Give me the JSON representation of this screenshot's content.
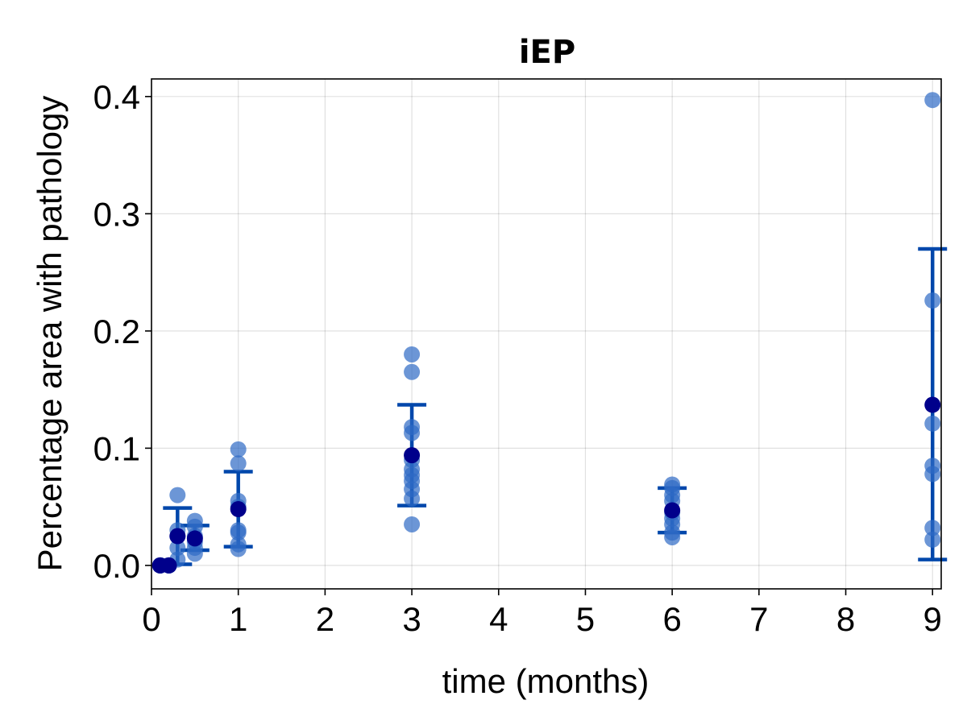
{
  "chart_data": {
    "type": "scatter",
    "title": "iEP",
    "xlabel": "time (months)",
    "ylabel": "Percentage area with pathology",
    "xlim": [
      0,
      9.1
    ],
    "ylim": [
      -0.02,
      0.415
    ],
    "x_ticks": [
      0,
      1,
      2,
      3,
      4,
      5,
      6,
      7,
      8,
      9
    ],
    "x_tick_labels": [
      "0",
      "1",
      "2",
      "3",
      "4",
      "5",
      "6",
      "7",
      "8",
      "9"
    ],
    "y_ticks": [
      0.0,
      0.1,
      0.2,
      0.3,
      0.4
    ],
    "y_tick_labels": [
      "0.0",
      "0.1",
      "0.2",
      "0.3",
      "0.4"
    ],
    "grid": true,
    "colors": {
      "points": "#2e6ac4",
      "mean": "#00008b",
      "errorbar": "#0047ab"
    },
    "groups": [
      {
        "x": 0.1,
        "points": [
          0.0,
          0.0,
          0.0,
          0.0
        ],
        "mean": 0.0,
        "err_low": 0.0,
        "err_high": 0.0
      },
      {
        "x": 0.2,
        "points": [
          0.0,
          0.0,
          0.0
        ],
        "mean": 0.0,
        "err_low": 0.0,
        "err_high": 0.0
      },
      {
        "x": 0.3,
        "points": [
          0.06,
          0.03,
          0.025,
          0.015,
          0.005
        ],
        "mean": 0.025,
        "err_low": 0.001,
        "err_high": 0.049
      },
      {
        "x": 0.5,
        "points": [
          0.038,
          0.033,
          0.025,
          0.02,
          0.015,
          0.01
        ],
        "mean": 0.023,
        "err_low": 0.013,
        "err_high": 0.034
      },
      {
        "x": 1,
        "points": [
          0.099,
          0.087,
          0.055,
          0.05,
          0.03,
          0.028,
          0.018,
          0.014
        ],
        "mean": 0.048,
        "err_low": 0.016,
        "err_high": 0.08
      },
      {
        "x": 3,
        "points": [
          0.18,
          0.165,
          0.118,
          0.113,
          0.09,
          0.082,
          0.077,
          0.072,
          0.065,
          0.057,
          0.035
        ],
        "mean": 0.094,
        "err_low": 0.051,
        "err_high": 0.137
      },
      {
        "x": 6,
        "points": [
          0.069,
          0.066,
          0.06,
          0.055,
          0.045,
          0.04,
          0.035,
          0.028,
          0.024
        ],
        "mean": 0.047,
        "err_low": 0.028,
        "err_high": 0.066
      },
      {
        "x": 9,
        "points": [
          0.397,
          0.226,
          0.121,
          0.085,
          0.078,
          0.032,
          0.022
        ],
        "mean": 0.137,
        "err_low": 0.005,
        "err_high": 0.27
      }
    ]
  }
}
